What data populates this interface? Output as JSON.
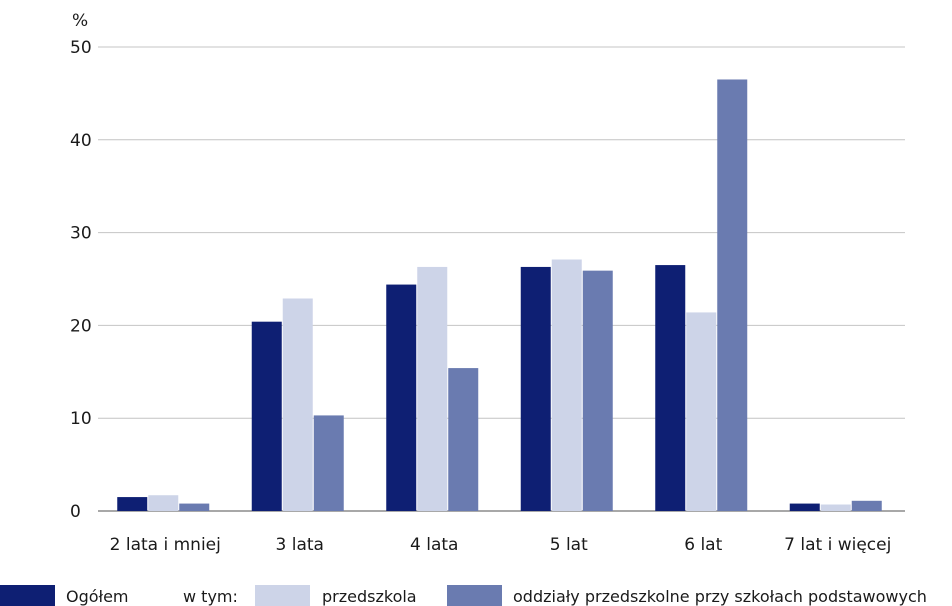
{
  "chart_data": {
    "type": "bar",
    "title": "",
    "xlabel": "",
    "ylabel": "%",
    "ylim": [
      0,
      50
    ],
    "yticks": [
      0,
      10,
      20,
      30,
      40,
      50
    ],
    "grid": true,
    "legend_placement": "bottom",
    "categories": [
      "2 lata i mniej",
      "3 lata",
      "4 lata",
      "5 lat",
      "6 lat",
      "7 lat i więcej"
    ],
    "series": [
      {
        "name": "Ogółem",
        "color": "#0e1f73",
        "values": [
          1.5,
          20.4,
          24.4,
          26.3,
          26.5,
          0.8
        ]
      },
      {
        "name": "przedszkola",
        "color": "#cdd4e8",
        "values": [
          1.7,
          22.9,
          26.3,
          27.1,
          21.4,
          0.7
        ]
      },
      {
        "name": "oddziały przedszkolne przy szkołach podstawowych",
        "color": "#6a7bb0",
        "values": [
          0.8,
          10.3,
          15.4,
          25.9,
          46.5,
          1.1
        ]
      }
    ],
    "legend_intro": "w tym:"
  }
}
